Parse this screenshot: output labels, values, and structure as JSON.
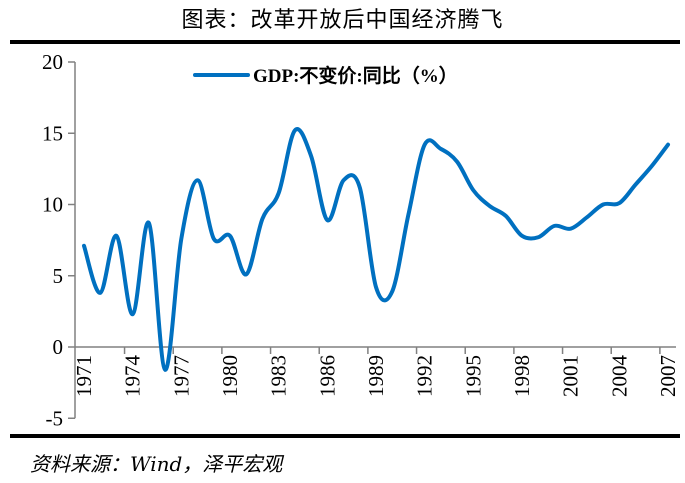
{
  "title": "图表：改革开放后中国经济腾飞",
  "source": "资料来源：Wind，泽平宏观",
  "chart_data": {
    "type": "line",
    "title": "图表：改革开放后中国经济腾飞",
    "xlabel": "",
    "ylabel": "",
    "x": [
      1971,
      1972,
      1973,
      1974,
      1975,
      1976,
      1977,
      1978,
      1979,
      1980,
      1981,
      1982,
      1983,
      1984,
      1985,
      1986,
      1987,
      1988,
      1989,
      1990,
      1991,
      1992,
      1993,
      1994,
      1995,
      1996,
      1997,
      1998,
      1999,
      2000,
      2001,
      2002,
      2003,
      2004,
      2005,
      2006,
      2007
    ],
    "series": [
      {
        "name": "GDP:不变价:同比（%）",
        "color": "#0070C0",
        "values": [
          7.1,
          3.8,
          7.8,
          2.3,
          8.7,
          -1.6,
          7.6,
          11.7,
          7.6,
          7.8,
          5.1,
          9.0,
          10.8,
          15.2,
          13.4,
          8.9,
          11.7,
          11.2,
          4.2,
          3.9,
          9.3,
          14.2,
          13.9,
          13.0,
          11.0,
          9.9,
          9.2,
          7.8,
          7.7,
          8.5,
          8.3,
          9.1,
          10.0,
          10.1,
          11.4,
          12.7,
          14.2
        ]
      }
    ],
    "ylim": [
      -5,
      20
    ],
    "yticks": [
      "-5",
      "0",
      "5",
      "10",
      "15",
      "20"
    ],
    "xticks": [
      "1971",
      "1974",
      "1977",
      "1980",
      "1983",
      "1986",
      "1989",
      "1992",
      "1995",
      "1998",
      "2001",
      "2004",
      "2007"
    ],
    "grid": false,
    "legend": "top-center"
  }
}
